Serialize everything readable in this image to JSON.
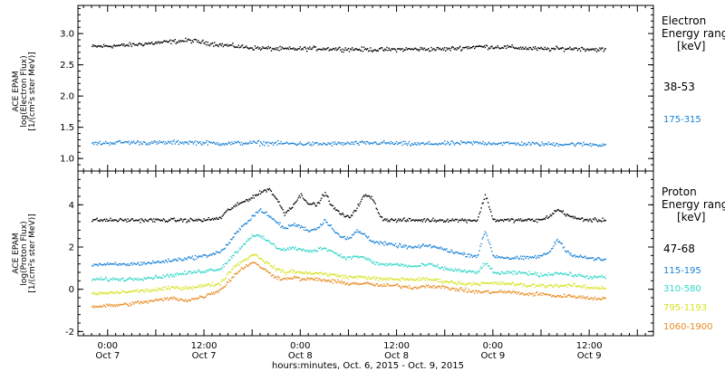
{
  "xlabel": "hours:minutes, Oct.  6, 2015 - Oct.  9, 2015",
  "x_ticks": [
    {
      "time": "0:00",
      "date": "Oct 7",
      "hour": 6
    },
    {
      "time": "12:00",
      "date": "Oct 7",
      "hour": 18
    },
    {
      "time": "0:00",
      "date": "Oct 8",
      "hour": 30
    },
    {
      "time": "12:00",
      "date": "Oct 8",
      "hour": 42
    },
    {
      "time": "0:00",
      "date": "Oct 9",
      "hour": 54
    },
    {
      "time": "12:00",
      "date": "Oct 9",
      "hour": 66
    }
  ],
  "chart_data": [
    {
      "type": "scatter",
      "id": "electron",
      "ylabel": [
        "ACE EPAM",
        "log(Electron Flux)",
        "[1/(cm²s ster MeV)]"
      ],
      "ylim": [
        0.8,
        3.45
      ],
      "xlim": [
        2.3,
        74
      ],
      "yticks": [
        1.0,
        1.5,
        2.0,
        2.5,
        3.0
      ],
      "ytick_labels": [
        "1.0",
        "1.5",
        "2.0",
        "2.5",
        "3.0"
      ],
      "legend_title": [
        "Electron",
        "Energy ranges",
        "[keV]"
      ],
      "series": [
        {
          "name": "38-53",
          "color": "#000000",
          "x": [
            4,
            8,
            12,
            16,
            20,
            24,
            28,
            32,
            36,
            40,
            44,
            48,
            52,
            56,
            60,
            64,
            68
          ],
          "values": [
            2.8,
            2.82,
            2.86,
            2.9,
            2.83,
            2.78,
            2.76,
            2.77,
            2.76,
            2.75,
            2.76,
            2.76,
            2.8,
            2.79,
            2.76,
            2.77,
            2.75
          ]
        },
        {
          "name": "175-315",
          "color": "#1a82d6",
          "x": [
            4,
            8,
            12,
            16,
            20,
            24,
            28,
            32,
            36,
            40,
            44,
            48,
            52,
            56,
            60,
            64,
            68
          ],
          "values": [
            1.25,
            1.27,
            1.26,
            1.27,
            1.25,
            1.26,
            1.25,
            1.24,
            1.25,
            1.26,
            1.24,
            1.25,
            1.26,
            1.25,
            1.24,
            1.24,
            1.23
          ]
        }
      ]
    },
    {
      "type": "scatter",
      "id": "proton",
      "ylabel": [
        "ACE EPAM",
        "log(Proton Flux)",
        "[1/(cm²s ster MeV)]"
      ],
      "ylim": [
        -2.2,
        5.6
      ],
      "xlim": [
        2.3,
        74
      ],
      "yticks": [
        -2,
        0,
        2,
        4
      ],
      "ytick_labels": [
        "-2",
        "0",
        "2",
        "4"
      ],
      "legend_title": [
        "Proton",
        "Energy ranges",
        "[keV]"
      ],
      "series": [
        {
          "name": "47-68",
          "color": "#000000",
          "x": [
            4,
            8,
            12,
            14,
            16,
            18,
            20,
            21,
            22,
            23,
            24,
            25,
            26,
            27,
            28,
            29,
            30,
            31,
            32,
            33,
            34,
            35,
            36,
            37,
            38,
            39,
            40,
            41,
            42,
            46,
            50,
            52,
            53,
            54,
            56,
            58,
            60,
            61,
            62,
            63,
            64,
            66,
            68
          ],
          "values": [
            3.3,
            3.3,
            3.3,
            3.3,
            3.3,
            3.3,
            3.4,
            3.8,
            4.0,
            4.2,
            4.4,
            4.6,
            4.8,
            4.3,
            3.6,
            4.0,
            4.5,
            4.1,
            4.0,
            4.6,
            3.9,
            3.6,
            3.4,
            3.9,
            4.5,
            4.3,
            3.4,
            3.3,
            3.3,
            3.3,
            3.3,
            3.3,
            4.5,
            3.3,
            3.3,
            3.3,
            3.3,
            3.5,
            3.8,
            3.6,
            3.4,
            3.3,
            3.3
          ]
        },
        {
          "name": "115-195",
          "color": "#1a82d6",
          "x": [
            4,
            8,
            12,
            14,
            16,
            18,
            20,
            21,
            22,
            23,
            24,
            25,
            26,
            27,
            28,
            29,
            30,
            31,
            32,
            33,
            34,
            35,
            36,
            37,
            38,
            39,
            40,
            42,
            44,
            46,
            48,
            50,
            52,
            53,
            54,
            56,
            58,
            60,
            61,
            62,
            63,
            64,
            66,
            68
          ],
          "values": [
            1.2,
            1.2,
            1.3,
            1.4,
            1.5,
            1.6,
            1.8,
            2.2,
            2.7,
            3.1,
            3.5,
            3.8,
            3.5,
            3.2,
            2.9,
            3.1,
            3.0,
            2.8,
            2.9,
            3.3,
            2.9,
            2.5,
            2.4,
            2.8,
            2.6,
            2.3,
            2.2,
            2.1,
            2.0,
            2.1,
            1.9,
            1.7,
            1.6,
            2.8,
            1.6,
            1.5,
            1.5,
            1.6,
            1.8,
            2.4,
            1.9,
            1.6,
            1.5,
            1.4
          ]
        },
        {
          "name": "310-580",
          "color": "#2fd6c8",
          "x": [
            4,
            8,
            12,
            14,
            16,
            18,
            20,
            21,
            22,
            23,
            24,
            25,
            26,
            27,
            28,
            29,
            30,
            31,
            32,
            33,
            34,
            35,
            36,
            37,
            38,
            39,
            40,
            42,
            44,
            46,
            48,
            50,
            52,
            53,
            54,
            56,
            58,
            60,
            62,
            64,
            66,
            68
          ],
          "values": [
            0.5,
            0.5,
            0.6,
            0.7,
            0.8,
            0.9,
            1.0,
            1.4,
            1.8,
            2.2,
            2.6,
            2.5,
            2.3,
            2.0,
            1.9,
            2.0,
            1.9,
            1.8,
            1.9,
            2.0,
            1.8,
            1.6,
            1.5,
            1.6,
            1.5,
            1.3,
            1.2,
            1.2,
            1.1,
            1.2,
            1.0,
            0.9,
            0.8,
            1.3,
            0.8,
            0.8,
            0.8,
            0.7,
            0.8,
            0.7,
            0.6,
            0.6
          ]
        },
        {
          "name": "795-1193",
          "color": "#d6e21a",
          "x": [
            4,
            8,
            12,
            14,
            16,
            18,
            20,
            21,
            22,
            23,
            24,
            25,
            26,
            27,
            28,
            29,
            30,
            32,
            34,
            36,
            38,
            40,
            42,
            44,
            46,
            48,
            50,
            52,
            54,
            56,
            58,
            60,
            62,
            64,
            66,
            68
          ],
          "values": [
            -0.2,
            -0.1,
            0.0,
            0.1,
            0.1,
            0.2,
            0.3,
            0.8,
            1.2,
            1.4,
            1.7,
            1.5,
            1.2,
            1.0,
            0.8,
            0.9,
            0.8,
            0.8,
            0.7,
            0.6,
            0.6,
            0.5,
            0.5,
            0.5,
            0.5,
            0.4,
            0.3,
            0.3,
            0.3,
            0.3,
            0.2,
            0.2,
            0.2,
            0.2,
            0.1,
            0.1
          ]
        },
        {
          "name": "1060-1900",
          "color": "#e8891c",
          "x": [
            4,
            8,
            12,
            14,
            16,
            18,
            20,
            21,
            22,
            23,
            24,
            25,
            26,
            27,
            28,
            29,
            30,
            32,
            34,
            36,
            38,
            40,
            42,
            44,
            46,
            48,
            50,
            52,
            54,
            56,
            58,
            60,
            62,
            64,
            66,
            68
          ],
          "values": [
            -0.8,
            -0.7,
            -0.5,
            -0.4,
            -0.5,
            -0.3,
            0.0,
            0.4,
            0.8,
            1.1,
            1.3,
            1.1,
            0.8,
            0.6,
            0.5,
            0.6,
            0.5,
            0.5,
            0.4,
            0.3,
            0.3,
            0.2,
            0.2,
            0.1,
            0.2,
            0.1,
            0.0,
            -0.1,
            -0.1,
            -0.1,
            -0.2,
            -0.2,
            -0.3,
            -0.3,
            -0.4,
            -0.4
          ]
        }
      ]
    }
  ]
}
